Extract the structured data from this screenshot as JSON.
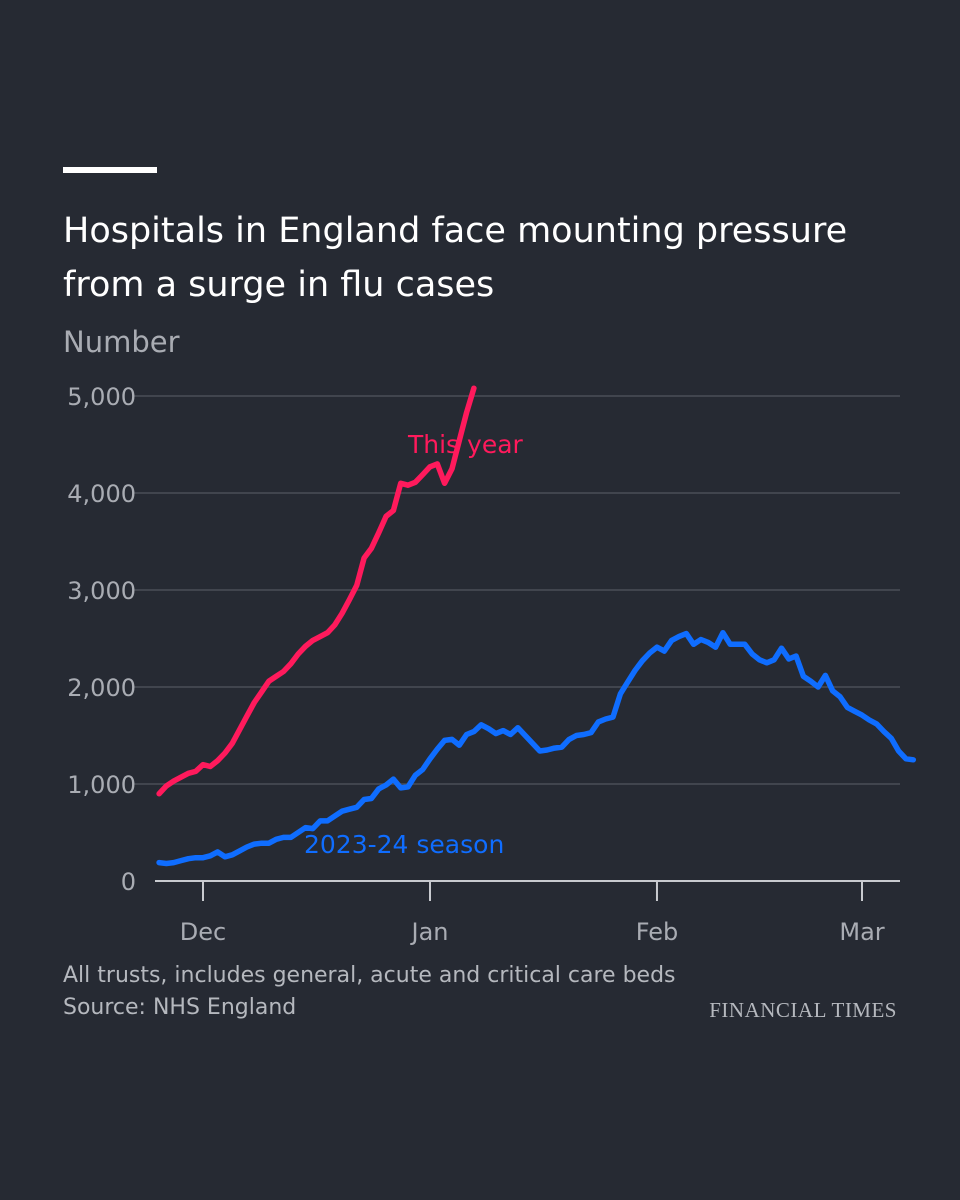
{
  "header": {
    "title": "Hospitals in England face mounting pressure from a surge in flu cases",
    "unit_label": "Number"
  },
  "footer": {
    "note": "All trusts, includes general, acute and critical care beds",
    "source": "Source: NHS England",
    "logo_text": "FINANCIAL TIMES"
  },
  "colors": {
    "background": "#262a33",
    "this_year": "#ff1a5c",
    "season_2023_24": "#0f6dff",
    "grid": "#4a4e57",
    "axis_text": "#a9acb3"
  },
  "chart_data": {
    "type": "line",
    "title": "Hospitals in England face mounting pressure from a surge in flu cases",
    "ylabel": "Number",
    "xlabel": "",
    "ylim": [
      0,
      5000
    ],
    "yticks": [
      {
        "value": 0,
        "label": "0"
      },
      {
        "value": 1000,
        "label": "1,000"
      },
      {
        "value": 2000,
        "label": "2,000"
      },
      {
        "value": 3000,
        "label": "3,000"
      },
      {
        "value": 4000,
        "label": "4,000"
      },
      {
        "value": 5000,
        "label": "5,000"
      }
    ],
    "xlim": [
      "2024-11-25",
      "2025-03-04"
    ],
    "xticks": [
      {
        "date": "2024-12-01",
        "label": "Dec"
      },
      {
        "date": "2025-01-01",
        "label": "Jan"
      },
      {
        "date": "2025-02-01",
        "label": "Feb"
      },
      {
        "date": "2025-03-01",
        "label": "Mar"
      }
    ],
    "grid": true,
    "series": [
      {
        "name": "This year",
        "color": "#ff1a5c",
        "points": [
          [
            "2024-11-25",
            900
          ],
          [
            "2024-11-26",
            980
          ],
          [
            "2024-11-27",
            1030
          ],
          [
            "2024-11-28",
            1070
          ],
          [
            "2024-11-29",
            1110
          ],
          [
            "2024-11-30",
            1130
          ],
          [
            "2024-12-01",
            1200
          ],
          [
            "2024-12-02",
            1180
          ],
          [
            "2024-12-03",
            1240
          ],
          [
            "2024-12-04",
            1320
          ],
          [
            "2024-12-05",
            1420
          ],
          [
            "2024-12-06",
            1560
          ],
          [
            "2024-12-07",
            1700
          ],
          [
            "2024-12-08",
            1840
          ],
          [
            "2024-12-09",
            1950
          ],
          [
            "2024-12-10",
            2060
          ],
          [
            "2024-12-11",
            2110
          ],
          [
            "2024-12-12",
            2160
          ],
          [
            "2024-12-13",
            2240
          ],
          [
            "2024-12-14",
            2340
          ],
          [
            "2024-12-15",
            2420
          ],
          [
            "2024-12-16",
            2480
          ],
          [
            "2024-12-17",
            2520
          ],
          [
            "2024-12-18",
            2560
          ],
          [
            "2024-12-19",
            2640
          ],
          [
            "2024-12-20",
            2760
          ],
          [
            "2024-12-21",
            2900
          ],
          [
            "2024-12-22",
            3050
          ],
          [
            "2024-12-23",
            3330
          ],
          [
            "2024-12-24",
            3430
          ],
          [
            "2024-12-25",
            3590
          ],
          [
            "2024-12-26",
            3760
          ],
          [
            "2024-12-27",
            3820
          ],
          [
            "2024-12-28",
            4100
          ],
          [
            "2024-12-29",
            4080
          ],
          [
            "2024-12-30",
            4110
          ],
          [
            "2024-12-31",
            4190
          ],
          [
            "2025-01-01",
            4270
          ],
          [
            "2025-01-02",
            4300
          ],
          [
            "2025-01-03",
            4100
          ],
          [
            "2025-01-04",
            4250
          ],
          [
            "2025-01-05",
            4540
          ],
          [
            "2025-01-06",
            4830
          ],
          [
            "2025-01-07",
            5080
          ]
        ]
      },
      {
        "name": "2023-24 season",
        "color": "#0f6dff",
        "points": [
          [
            "2024-11-25",
            190
          ],
          [
            "2024-11-26",
            180
          ],
          [
            "2024-11-27",
            190
          ],
          [
            "2024-11-28",
            210
          ],
          [
            "2024-11-29",
            230
          ],
          [
            "2024-11-30",
            240
          ],
          [
            "2024-12-01",
            240
          ],
          [
            "2024-12-02",
            260
          ],
          [
            "2024-12-03",
            300
          ],
          [
            "2024-12-04",
            250
          ],
          [
            "2024-12-05",
            270
          ],
          [
            "2024-12-06",
            310
          ],
          [
            "2024-12-07",
            350
          ],
          [
            "2024-12-08",
            380
          ],
          [
            "2024-12-09",
            390
          ],
          [
            "2024-12-10",
            390
          ],
          [
            "2024-12-11",
            430
          ],
          [
            "2024-12-12",
            450
          ],
          [
            "2024-12-13",
            450
          ],
          [
            "2024-12-14",
            500
          ],
          [
            "2024-12-15",
            550
          ],
          [
            "2024-12-16",
            540
          ],
          [
            "2024-12-17",
            620
          ],
          [
            "2024-12-18",
            620
          ],
          [
            "2024-12-19",
            670
          ],
          [
            "2024-12-20",
            720
          ],
          [
            "2024-12-21",
            740
          ],
          [
            "2024-12-22",
            760
          ],
          [
            "2024-12-23",
            840
          ],
          [
            "2024-12-24",
            850
          ],
          [
            "2024-12-25",
            950
          ],
          [
            "2024-12-26",
            990
          ],
          [
            "2024-12-27",
            1050
          ],
          [
            "2024-12-28",
            960
          ],
          [
            "2024-12-29",
            970
          ],
          [
            "2024-12-30",
            1090
          ],
          [
            "2024-12-31",
            1150
          ],
          [
            "2025-01-01",
            1260
          ],
          [
            "2025-01-02",
            1360
          ],
          [
            "2025-01-03",
            1450
          ],
          [
            "2025-01-04",
            1460
          ],
          [
            "2025-01-05",
            1400
          ],
          [
            "2025-01-06",
            1510
          ],
          [
            "2025-01-07",
            1540
          ],
          [
            "2025-01-08",
            1610
          ],
          [
            "2025-01-09",
            1570
          ],
          [
            "2025-01-10",
            1520
          ],
          [
            "2025-01-11",
            1550
          ],
          [
            "2025-01-12",
            1510
          ],
          [
            "2025-01-13",
            1580
          ],
          [
            "2025-01-14",
            1500
          ],
          [
            "2025-01-15",
            1420
          ],
          [
            "2025-01-16",
            1340
          ],
          [
            "2025-01-17",
            1350
          ],
          [
            "2025-01-18",
            1370
          ],
          [
            "2025-01-19",
            1380
          ],
          [
            "2025-01-20",
            1460
          ],
          [
            "2025-01-21",
            1500
          ],
          [
            "2025-01-22",
            1510
          ],
          [
            "2025-01-23",
            1530
          ],
          [
            "2025-01-24",
            1640
          ],
          [
            "2025-01-25",
            1670
          ],
          [
            "2025-01-26",
            1690
          ],
          [
            "2025-01-27",
            1930
          ],
          [
            "2025-01-28",
            2050
          ],
          [
            "2025-01-29",
            2170
          ],
          [
            "2025-01-30",
            2270
          ],
          [
            "2025-01-31",
            2350
          ],
          [
            "2025-02-01",
            2410
          ],
          [
            "2025-02-02",
            2370
          ],
          [
            "2025-02-03",
            2480
          ],
          [
            "2025-02-04",
            2520
          ],
          [
            "2025-02-05",
            2550
          ],
          [
            "2025-02-06",
            2440
          ],
          [
            "2025-02-07",
            2490
          ],
          [
            "2025-02-08",
            2460
          ],
          [
            "2025-02-09",
            2410
          ],
          [
            "2025-02-10",
            2560
          ],
          [
            "2025-02-11",
            2440
          ],
          [
            "2025-02-12",
            2440
          ],
          [
            "2025-02-13",
            2440
          ],
          [
            "2025-02-14",
            2340
          ],
          [
            "2025-02-15",
            2280
          ],
          [
            "2025-02-16",
            2250
          ],
          [
            "2025-02-17",
            2280
          ],
          [
            "2025-02-18",
            2400
          ],
          [
            "2025-02-19",
            2290
          ],
          [
            "2025-02-20",
            2320
          ],
          [
            "2025-02-21",
            2110
          ],
          [
            "2025-02-22",
            2060
          ],
          [
            "2025-02-23",
            2000
          ],
          [
            "2025-02-24",
            2120
          ],
          [
            "2025-02-25",
            1960
          ],
          [
            "2025-02-26",
            1900
          ],
          [
            "2025-02-27",
            1790
          ],
          [
            "2025-02-28",
            1750
          ],
          [
            "2025-03-01",
            1710
          ],
          [
            "2025-03-02",
            1660
          ],
          [
            "2025-03-03",
            1620
          ],
          [
            "2025-03-04",
            1540
          ],
          [
            "2025-03-05",
            1470
          ],
          [
            "2025-03-06",
            1340
          ],
          [
            "2025-03-07",
            1260
          ],
          [
            "2025-03-08",
            1250
          ]
        ]
      }
    ],
    "annotations": [
      {
        "text": "This year",
        "series": "This year"
      },
      {
        "text": "2023-24 season",
        "series": "2023-24 season"
      }
    ]
  }
}
